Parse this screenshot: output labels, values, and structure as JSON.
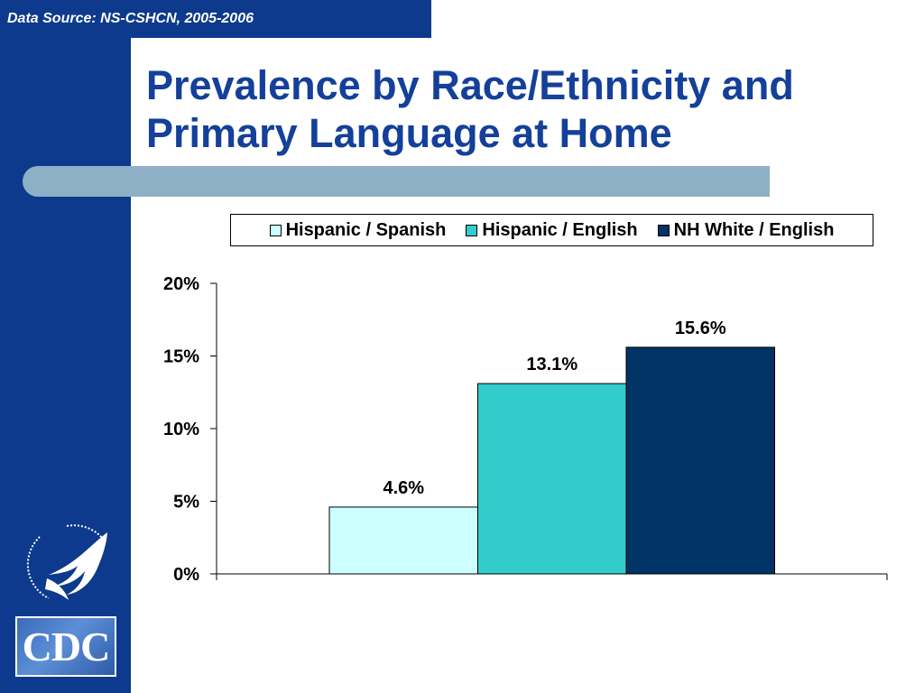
{
  "source": "Data Source: NS-CSHCN, 2005-2006",
  "title_line1": "Prevalence by Race/Ethnicity and",
  "title_line2": "Primary Language at Home",
  "logo_text": "CDC",
  "colors": {
    "sidebar": "#0d3a8c",
    "title": "#14409a",
    "accent_bar": "#8eb0c6"
  },
  "chart_data": {
    "type": "bar",
    "title": "",
    "xlabel": "",
    "ylabel": "",
    "ylim": [
      0,
      20
    ],
    "yticks": [
      "0%",
      "5%",
      "10%",
      "15%",
      "20%"
    ],
    "grid": false,
    "legend_position": "top",
    "series": [
      {
        "name": "Hispanic / Spanish",
        "value": 4.6,
        "label": "4.6%",
        "color": "#ccffff"
      },
      {
        "name": "Hispanic / English",
        "value": 13.1,
        "label": "13.1%",
        "color": "#33cccc"
      },
      {
        "name": "NH White / English",
        "value": 15.6,
        "label": "15.6%",
        "color": "#003366"
      }
    ]
  }
}
